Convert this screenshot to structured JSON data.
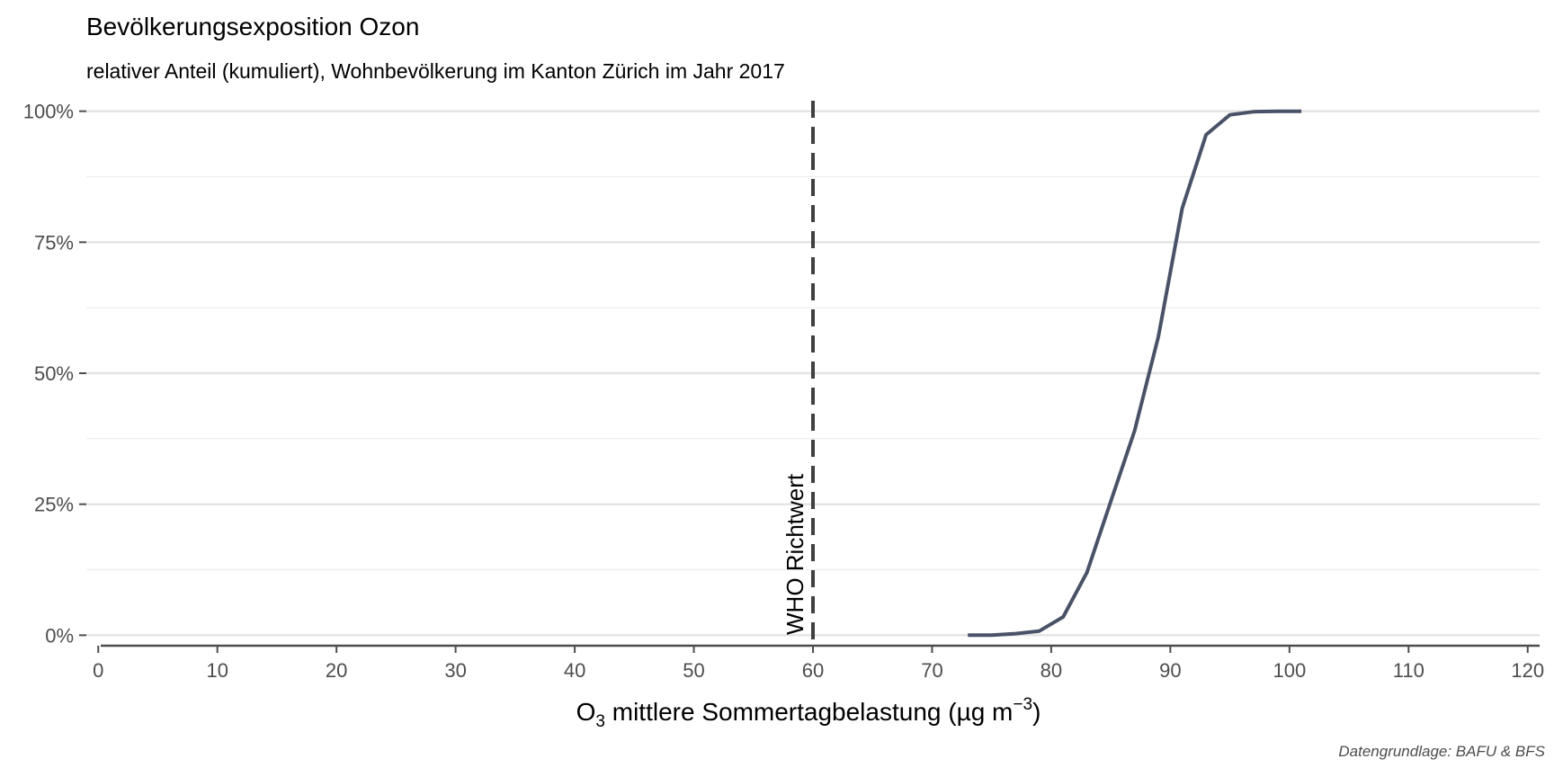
{
  "chart_data": {
    "type": "line",
    "title": "Bevölkerungsexposition Ozon",
    "subtitle": "relativer Anteil (kumuliert), Wohnbevölkerung im Kanton Zürich im Jahr 2017",
    "caption": "Datengrundlage: BAFU & BFS",
    "xlabel": {
      "prefix": "O",
      "sub": "3",
      "main": " mittlere Sommertagbelastung (µg m",
      "sup": "−3",
      "suffix": ")"
    },
    "ylabel": "",
    "xlim": [
      -1,
      121
    ],
    "ylim": [
      -0.02,
      1.02
    ],
    "x_ticks": [
      0,
      10,
      20,
      30,
      40,
      50,
      60,
      70,
      80,
      90,
      100,
      110,
      120
    ],
    "y_ticks": [
      {
        "value": 0,
        "label": "0%"
      },
      {
        "value": 0.25,
        "label": "25%"
      },
      {
        "value": 0.5,
        "label": "50%"
      },
      {
        "value": 0.75,
        "label": "75%"
      },
      {
        "value": 1.0,
        "label": "100%"
      }
    ],
    "y_minor_gridlines": [
      0.125,
      0.375,
      0.625,
      0.875
    ],
    "grid": true,
    "series": [
      {
        "color": "#4a5268",
        "x": [
          73,
          75,
          77,
          79,
          81,
          83,
          85,
          87,
          89,
          91,
          93,
          95,
          97,
          99,
          101
        ],
        "y": [
          0.0,
          0.0,
          0.003,
          0.008,
          0.035,
          0.12,
          0.255,
          0.39,
          0.57,
          0.815,
          0.955,
          0.993,
          0.999,
          1.0,
          1.0
        ]
      }
    ],
    "reference_line": {
      "x": 60,
      "label": "WHO Richtwert",
      "color": "#404040",
      "style": "dashed"
    }
  }
}
